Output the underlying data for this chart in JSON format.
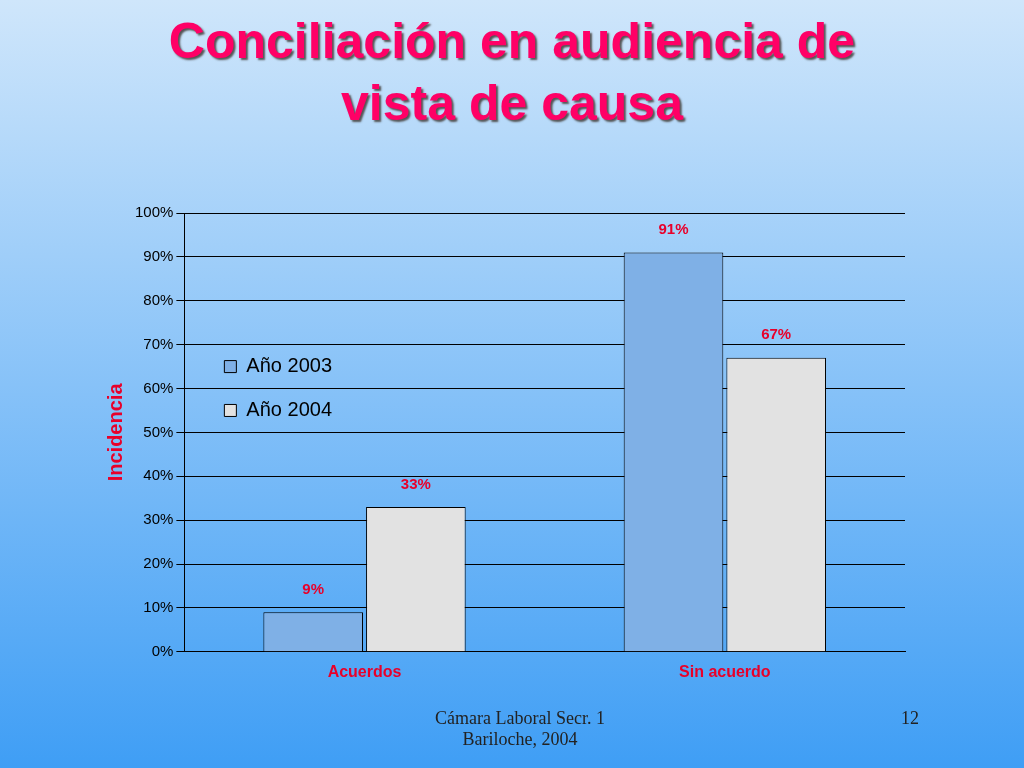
{
  "chart_data": {
    "type": "bar",
    "title": "Conciliación en audiencia de vista de causa",
    "ylabel": "Incidencia",
    "categories": [
      "Acuerdos",
      "Sin acuerdo"
    ],
    "series": [
      {
        "name": "Año 2003",
        "color": "#7fb0e6",
        "values": [
          9,
          91
        ],
        "value_labels": [
          "9%",
          "91%"
        ]
      },
      {
        "name": "Año 2004",
        "color": "#e2e2e2",
        "values": [
          33,
          67
        ],
        "value_labels": [
          "33%",
          "67%"
        ]
      }
    ],
    "ylim": [
      0,
      100
    ],
    "yticks": [
      {
        "value": 0,
        "label": "0%"
      },
      {
        "value": 10,
        "label": "10%"
      },
      {
        "value": 20,
        "label": "20%"
      },
      {
        "value": 30,
        "label": "30%"
      },
      {
        "value": 40,
        "label": "40%"
      },
      {
        "value": 50,
        "label": "50%"
      },
      {
        "value": 60,
        "label": "60%"
      },
      {
        "value": 70,
        "label": "70%"
      },
      {
        "value": 80,
        "label": "80%"
      },
      {
        "value": 90,
        "label": "90%"
      },
      {
        "value": 100,
        "label": "100%"
      }
    ],
    "grid": "y",
    "legend": "left",
    "annotations": [
      "Cámara Laboral Secr. 1\nBariloche, 2004",
      "12"
    ]
  }
}
